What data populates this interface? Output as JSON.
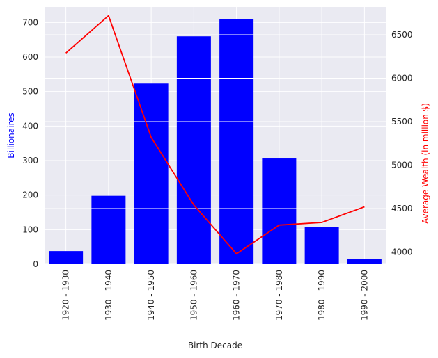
{
  "chart_data": {
    "type": "bar+line",
    "title": "",
    "xlabel": "Birth Decade",
    "categories": [
      "1920 - 1930",
      "1930 - 1940",
      "1940 - 1950",
      "1950 - 1960",
      "1960 - 1970",
      "1970 - 1980",
      "1980 - 1990",
      "1990 - 2000"
    ],
    "bar_series": {
      "axis": "left",
      "ylabel": "Billionaires",
      "color": "#0000ff",
      "values": [
        38,
        198,
        523,
        660,
        710,
        306,
        107,
        15
      ],
      "ylim": [
        0,
        745
      ],
      "yticks": [
        0,
        100,
        200,
        300,
        400,
        500,
        600,
        700
      ]
    },
    "line_series": {
      "axis": "right",
      "ylabel": "Average Wealth (in million $)",
      "color": "#ff0000",
      "values": [
        6290,
        6720,
        5320,
        4540,
        3980,
        4310,
        4340,
        4520
      ],
      "ylim": [
        3860,
        6820
      ],
      "yticks": [
        4000,
        4500,
        5000,
        5500,
        6000,
        6500
      ]
    },
    "grid": true,
    "background": "#eaeaf2",
    "grid_color": "#ffffff"
  }
}
